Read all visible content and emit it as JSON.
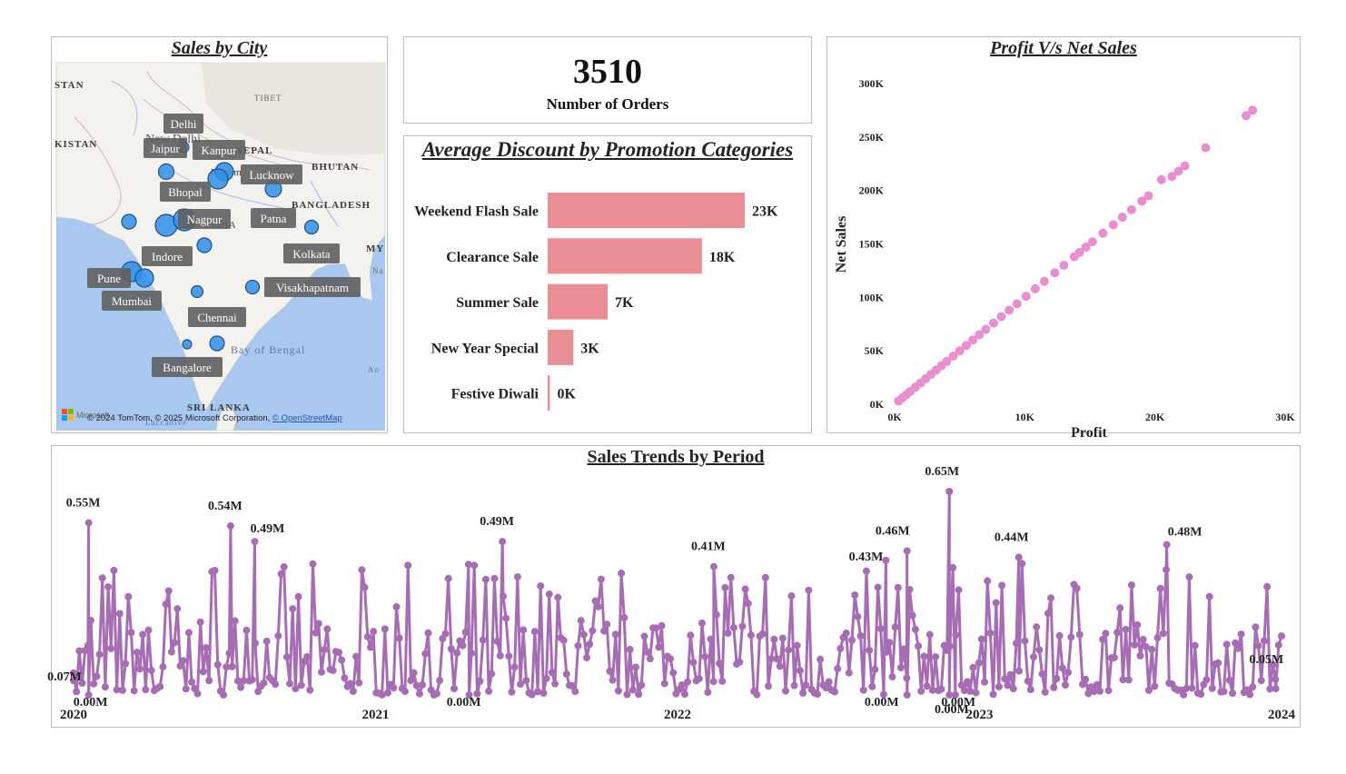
{
  "map": {
    "title": "Sales by City",
    "attribution": "© 2024 TomTom, © 2025 Microsoft Corporation, ",
    "attribution_link": "© OpenStreetMap",
    "brand": "Microsoft",
    "region_labels": [
      "STAN",
      "KISTAN",
      "TIBET",
      "NEPAL",
      "BHUTAN",
      "BANGLADESH",
      "MY",
      "Na",
      "INDIA",
      "Bay of Bengal",
      "An",
      "SRI LANKA",
      "Laccadive",
      "Kathm",
      "New Delhi"
    ],
    "cities": [
      "Delhi",
      "Jaipur",
      "Kanpur",
      "Lucknow",
      "Bhopal",
      "Patna",
      "Nagpur",
      "Indore",
      "Kolkata",
      "Pune",
      "Mumbai",
      "Visakhapatnam",
      "Chennai",
      "Bangalore"
    ],
    "colors": {
      "water": "#a8c8ef",
      "land": "#f4f2ee",
      "bubble": "#2f8fe8",
      "label_bg": "#5f5f5f"
    }
  },
  "kpi": {
    "value": "3510",
    "label": "Number of Orders"
  },
  "bar_chart": {
    "title": "Average Discount by Promotion Categories",
    "color": "#e88e94"
  },
  "scatter": {
    "title": "Profit V/s Net Sales",
    "color": "#e98fd0"
  },
  "trend": {
    "title": "Sales Trends by Period",
    "color": "#a66cb4"
  },
  "chart_data": [
    {
      "type": "bar",
      "title": "Average Discount by Promotion Categories",
      "orientation": "horizontal",
      "categories": [
        "Weekend Flash Sale",
        "Clearance Sale",
        "Summer Sale",
        "New Year Special",
        "Festive Diwali"
      ],
      "values": [
        23000,
        18000,
        7000,
        3000,
        100
      ],
      "data_labels": [
        "23K",
        "18K",
        "7K",
        "3K",
        "0K"
      ],
      "xlabel": "",
      "ylabel": "",
      "grid": false
    },
    {
      "type": "scatter",
      "title": "Profit V/s Net Sales",
      "xlabel": "Profit",
      "ylabel": "Net Sales",
      "xlim": [
        0,
        30000
      ],
      "ylim": [
        0,
        300000
      ],
      "x_ticks": [
        "0K",
        "10K",
        "20K",
        "30K"
      ],
      "y_ticks": [
        "0K",
        "50K",
        "100K",
        "150K",
        "200K",
        "250K",
        "300K"
      ],
      "x": [
        300,
        600,
        900,
        1200,
        1600,
        2000,
        2400,
        2800,
        3200,
        3600,
        4000,
        4500,
        5000,
        5500,
        6000,
        6500,
        7000,
        7600,
        8200,
        8800,
        9400,
        10100,
        10800,
        11500,
        12300,
        13000,
        13800,
        14200,
        14700,
        15200,
        16000,
        16800,
        17500,
        18200,
        19000,
        19500,
        20500,
        21300,
        21800,
        22300,
        23900,
        27000,
        27500
      ],
      "y": [
        3000,
        6000,
        9000,
        12000,
        16000,
        20000,
        24000,
        28000,
        32000,
        36000,
        40000,
        45000,
        50000,
        55000,
        60000,
        65000,
        70000,
        76000,
        82000,
        88000,
        94000,
        101000,
        108000,
        115000,
        123000,
        130000,
        138000,
        142000,
        147000,
        152000,
        160000,
        168000,
        175000,
        182000,
        190000,
        195000,
        210000,
        213000,
        218000,
        223000,
        240000,
        270000,
        275000
      ],
      "grid": false
    },
    {
      "type": "line",
      "title": "Sales Trends by Period",
      "x_ticks": [
        "2020",
        "2021",
        "2022",
        "2023",
        "2024"
      ],
      "annotations": [
        {
          "label": "0.55M",
          "year": 2020.05
        },
        {
          "label": "0.07M",
          "year": 2020.0
        },
        {
          "label": "0.00M",
          "year": 2020.05
        },
        {
          "label": "0.54M",
          "year": 2020.52
        },
        {
          "label": "0.49M",
          "year": 2020.6
        },
        {
          "label": "0.49M",
          "year": 2021.42
        },
        {
          "label": "0.00M",
          "year": 2021.31
        },
        {
          "label": "0.41M",
          "year": 2022.12
        },
        {
          "label": "0.43M",
          "year": 2022.69
        },
        {
          "label": "0.46M",
          "year": 2022.76
        },
        {
          "label": "0.65M",
          "year": 2022.9
        },
        {
          "label": "0.00M",
          "year": 2022.76
        },
        {
          "label": "0.00M",
          "year": 2022.9
        },
        {
          "label": "0.00M",
          "year": 2022.92
        },
        {
          "label": "0.44M",
          "year": 2023.13
        },
        {
          "label": "0.48M",
          "year": 2023.62
        },
        {
          "label": "0.05M",
          "year": 2023.98
        }
      ],
      "annotation_values": [
        0.55,
        0.07,
        0.0,
        0.54,
        0.49,
        0.49,
        0.0,
        0.41,
        0.43,
        0.46,
        0.65,
        0.0,
        0.0,
        0.0,
        0.44,
        0.48,
        0.05
      ],
      "y_unit": "M",
      "grid": false
    }
  ]
}
